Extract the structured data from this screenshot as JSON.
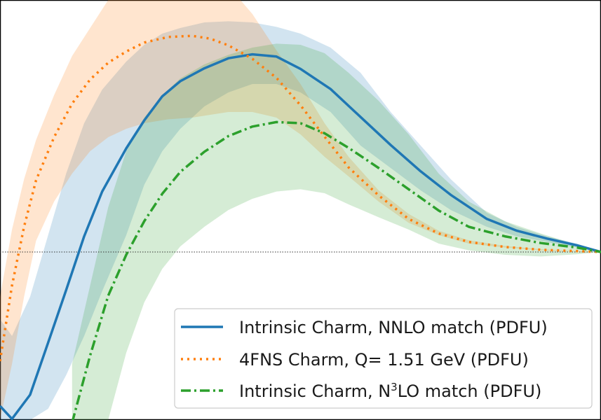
{
  "chart_data": {
    "type": "line",
    "title": "",
    "xlabel": "",
    "ylabel": "",
    "xlim": [
      0,
      1
    ],
    "ylim": [
      -0.03,
      0.045
    ],
    "reference_line": 0,
    "grid": false,
    "legend_position": "bottom-right",
    "series": [
      {
        "name": "Intrinsic Charm, NNLO match (PDFU)",
        "legend_main": "Intrinsic Charm, NNLO match (PDFU)",
        "legend_sup": "",
        "legend_tail": "",
        "color": "#1f77b4",
        "style": "solid",
        "x": [
          0.0,
          0.02,
          0.05,
          0.08,
          0.11,
          0.14,
          0.17,
          0.21,
          0.24,
          0.27,
          0.3,
          0.34,
          0.38,
          0.42,
          0.46,
          0.5,
          0.55,
          0.6,
          0.65,
          0.7,
          0.75,
          0.81,
          0.86,
          0.91,
          0.96,
          1.0
        ],
        "y": [
          -0.0275,
          -0.0298,
          -0.0255,
          -0.0162,
          -0.0068,
          0.0028,
          0.0108,
          0.0185,
          0.0235,
          0.0278,
          0.0305,
          0.0328,
          0.0346,
          0.0353,
          0.0349,
          0.0327,
          0.0291,
          0.0241,
          0.0191,
          0.0144,
          0.0102,
          0.0059,
          0.0038,
          0.0024,
          0.0012,
          0.0
        ],
        "upper": [
          -0.012,
          -0.015,
          -0.008,
          0.003,
          0.014,
          0.023,
          0.029,
          0.034,
          0.037,
          0.039,
          0.04,
          0.041,
          0.0412,
          0.041,
          0.0402,
          0.039,
          0.0365,
          0.032,
          0.025,
          0.019,
          0.013,
          0.007,
          0.0045,
          0.0028,
          0.0015,
          0.0
        ],
        "lower": [
          -0.03,
          -0.03,
          -0.03,
          -0.028,
          -0.022,
          -0.015,
          -0.007,
          0.003,
          0.012,
          0.018,
          0.022,
          0.026,
          0.0285,
          0.03,
          0.03,
          0.0285,
          0.025,
          0.019,
          0.015,
          0.011,
          0.0075,
          0.0045,
          0.0028,
          0.0018,
          0.0008,
          0.0
        ]
      },
      {
        "name": "4FNS Charm, Q= 1.51 GeV (PDFU)",
        "legend_main": "4FNS Charm, Q= 1.51 GeV (PDFU)",
        "legend_sup": "",
        "legend_tail": "",
        "color": "#ff7f0e",
        "style": "dotted",
        "x": [
          0.0,
          0.02,
          0.04,
          0.06,
          0.09,
          0.12,
          0.15,
          0.18,
          0.21,
          0.24,
          0.28,
          0.32,
          0.35,
          0.38,
          0.42,
          0.46,
          0.5,
          0.54,
          0.58,
          0.63,
          0.68,
          0.73,
          0.78,
          0.84,
          0.9,
          0.95,
          1.0
        ],
        "y": [
          -0.0195,
          -0.006,
          0.0045,
          0.0128,
          0.0205,
          0.0265,
          0.0308,
          0.0338,
          0.0358,
          0.0374,
          0.0384,
          0.0386,
          0.0381,
          0.0369,
          0.0345,
          0.0311,
          0.0262,
          0.0206,
          0.0151,
          0.0101,
          0.0059,
          0.0033,
          0.0018,
          0.0009,
          0.0004,
          0.0002,
          0.0
        ],
        "upper": [
          -0.008,
          0.004,
          0.013,
          0.02,
          0.028,
          0.035,
          0.04,
          0.045,
          0.048,
          0.05,
          0.0518,
          0.0522,
          0.0505,
          0.0475,
          0.0425,
          0.036,
          0.03,
          0.023,
          0.017,
          0.011,
          0.0068,
          0.0038,
          0.0021,
          0.0011,
          0.0005,
          0.0002,
          0.0
        ],
        "lower": [
          -0.03,
          -0.02,
          -0.008,
          0.002,
          0.009,
          0.014,
          0.018,
          0.0205,
          0.022,
          0.023,
          0.0237,
          0.024,
          0.0245,
          0.025,
          0.025,
          0.024,
          0.021,
          0.017,
          0.0135,
          0.009,
          0.0052,
          0.003,
          0.0015,
          0.0008,
          0.0003,
          0.0001,
          0.0
        ]
      },
      {
        "name": "Intrinsic Charm, N3LO match (PDFU)",
        "legend_main": "Intrinsic Charm, N",
        "legend_sup": "3",
        "legend_tail": "LO match (PDFU)",
        "color": "#2ca02c",
        "style": "dashdot",
        "x": [
          0.12,
          0.15,
          0.18,
          0.21,
          0.24,
          0.27,
          0.3,
          0.34,
          0.38,
          0.42,
          0.46,
          0.5,
          0.54,
          0.58,
          0.63,
          0.68,
          0.73,
          0.78,
          0.84,
          0.9,
          0.96,
          1.0
        ],
        "y": [
          -0.0305,
          -0.0185,
          -0.0078,
          -0.0005,
          0.0055,
          0.0104,
          0.0143,
          0.0179,
          0.0207,
          0.0224,
          0.0232,
          0.023,
          0.0212,
          0.0186,
          0.015,
          0.0112,
          0.0074,
          0.0045,
          0.0028,
          0.0016,
          0.0008,
          0.0
        ],
        "upper": [
          -0.02,
          -0.006,
          0.008,
          0.018,
          0.024,
          0.028,
          0.031,
          0.0335,
          0.0352,
          0.0365,
          0.0372,
          0.037,
          0.0355,
          0.032,
          0.027,
          0.021,
          0.014,
          0.009,
          0.0055,
          0.0033,
          0.0013,
          0.0
        ],
        "lower": [
          -0.03,
          -0.03,
          -0.03,
          -0.018,
          -0.009,
          -0.003,
          0.001,
          0.0045,
          0.0075,
          0.0095,
          0.0108,
          0.0112,
          0.0105,
          0.0085,
          0.0062,
          0.004,
          0.0015,
          0.0003,
          -0.0005,
          -0.0008,
          -0.0004,
          0.0
        ]
      }
    ]
  }
}
